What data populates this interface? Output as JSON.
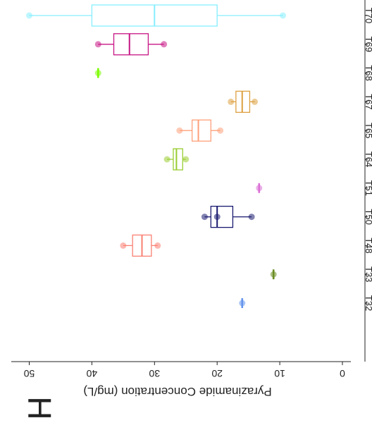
{
  "panel_label": "H",
  "chart_data": {
    "type": "box",
    "orientation": "horizontal",
    "rendered_rotation_deg": 180,
    "title": "",
    "xlabel": "",
    "ylabel": "Pyrazinamide Concentration (mg/L)",
    "ylim": [
      0,
      52
    ],
    "yticks": [
      0,
      10,
      20,
      30,
      40,
      50
    ],
    "grid": false,
    "legend": "none",
    "categories": [
      "T32",
      "T33",
      "T48",
      "T50",
      "T51",
      "T64",
      "T65",
      "T67",
      "T68",
      "T69",
      "T70"
    ],
    "series": [
      {
        "category": "T32",
        "color": "#6495ED",
        "q1": 16,
        "median": 16,
        "q3": 16,
        "whisker_low": 16,
        "whisker_high": 16,
        "points": [
          16
        ]
      },
      {
        "category": "T33",
        "color": "#6B8E23",
        "q1": 11,
        "median": 11,
        "q3": 11,
        "whisker_low": 11,
        "whisker_high": 11,
        "points": [
          11
        ]
      },
      {
        "category": "T48",
        "color": "#FA8072",
        "q1": 30.5,
        "median": 32,
        "q3": 33.5,
        "whisker_low": 29.5,
        "whisker_high": 35,
        "points": [
          35,
          29.5
        ]
      },
      {
        "category": "T50",
        "color": "#191970",
        "q1": 17.5,
        "median": 20,
        "q3": 21,
        "whisker_low": 14.5,
        "whisker_high": 22,
        "points": [
          22,
          20,
          14.5
        ]
      },
      {
        "category": "T51",
        "color": "#DA70D6",
        "q1": 13.3,
        "median": 13.3,
        "q3": 13.3,
        "whisker_low": 13.3,
        "whisker_high": 13.3,
        "points": [
          13.3
        ]
      },
      {
        "category": "T64",
        "color": "#9ACD32",
        "q1": 25.5,
        "median": 26.5,
        "q3": 27,
        "whisker_low": 25,
        "whisker_high": 28,
        "points": [
          28,
          25
        ]
      },
      {
        "category": "T65",
        "color": "#FFA07A",
        "q1": 21,
        "median": 23,
        "q3": 24,
        "whisker_low": 19.5,
        "whisker_high": 26,
        "points": [
          26,
          19.5
        ]
      },
      {
        "category": "T67",
        "color": "#DDA040",
        "q1": 14.8,
        "median": 16,
        "q3": 17,
        "whisker_low": 14,
        "whisker_high": 17.8,
        "points": [
          17.8,
          14
        ]
      },
      {
        "category": "T68",
        "color": "#7CFC00",
        "q1": 39,
        "median": 39,
        "q3": 39,
        "whisker_low": 39,
        "whisker_high": 39,
        "points": [
          39
        ]
      },
      {
        "category": "T69",
        "color": "#C71585",
        "q1": 31,
        "median": 34,
        "q3": 36.5,
        "whisker_low": 28.5,
        "whisker_high": 39,
        "points": [
          39,
          28.5
        ]
      },
      {
        "category": "T70",
        "color": "#87EEFF",
        "q1": 20,
        "median": 30,
        "q3": 40,
        "whisker_low": 9.5,
        "whisker_high": 50,
        "points": [
          50,
          9.5
        ]
      }
    ]
  }
}
